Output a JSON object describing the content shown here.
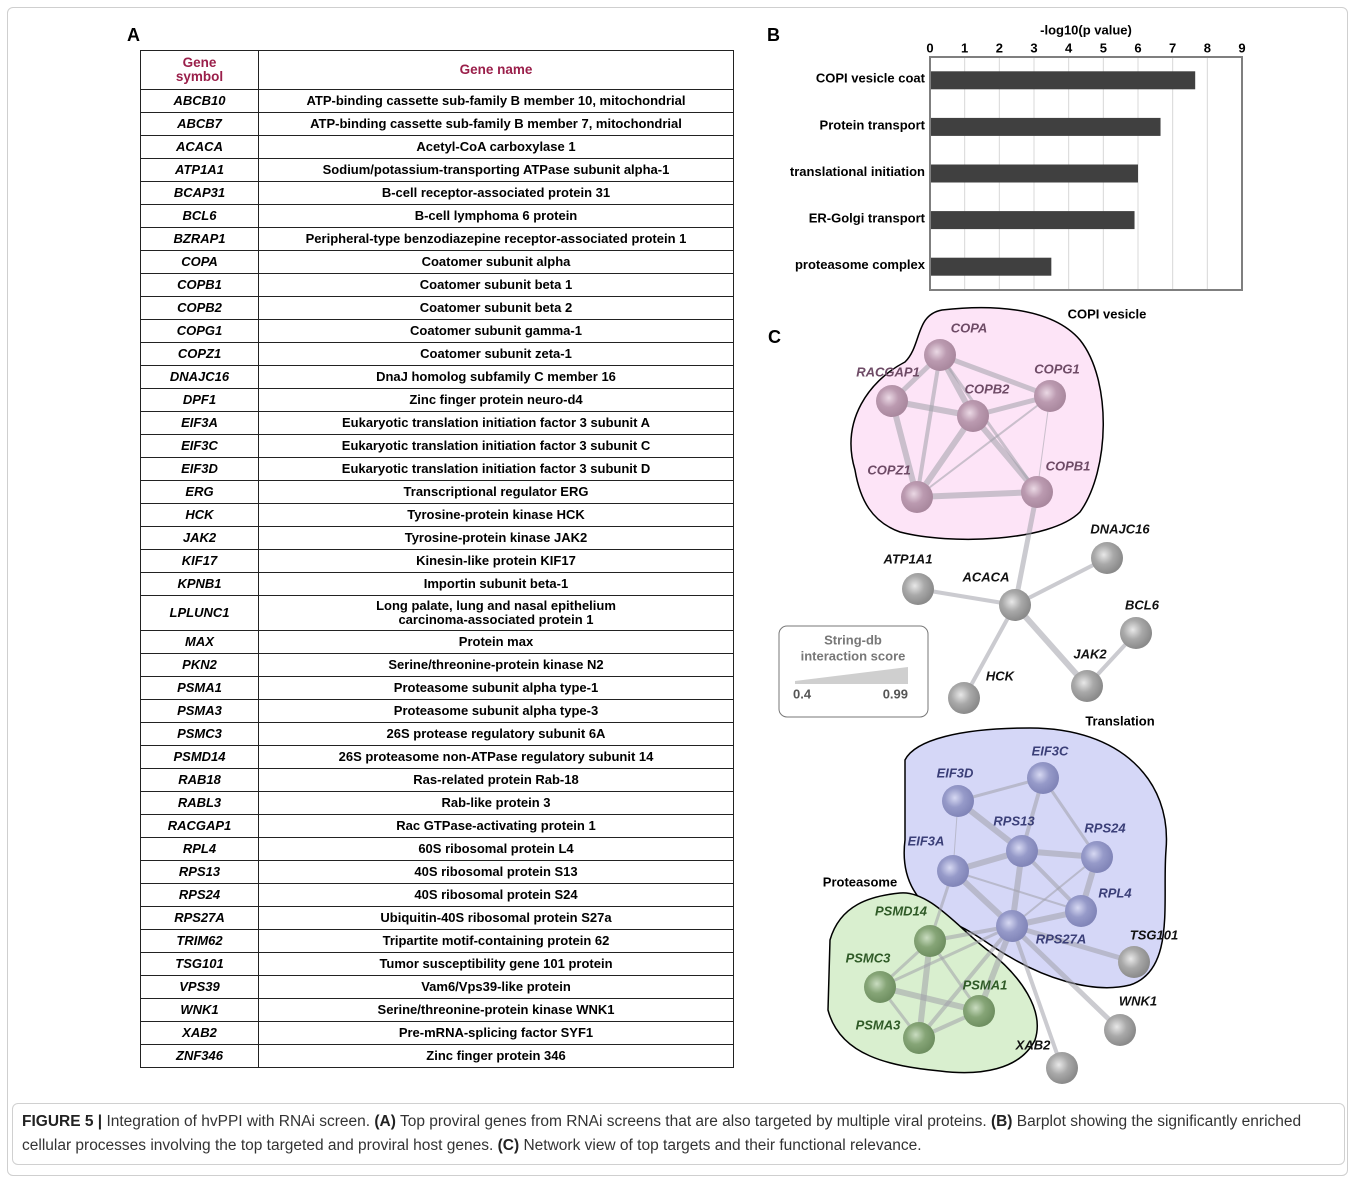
{
  "panel_a": {
    "label": "A",
    "table": {
      "header": [
        "Gene\nsymbol",
        "Gene name"
      ],
      "rows": [
        [
          "ABCB10",
          "ATP-binding cassette sub-family B member 10, mitochondrial"
        ],
        [
          "ABCB7",
          "ATP-binding cassette sub-family B member 7, mitochondrial"
        ],
        [
          "ACACA",
          "Acetyl-CoA carboxylase 1"
        ],
        [
          "ATP1A1",
          "Sodium/potassium-transporting ATPase subunit alpha-1"
        ],
        [
          "BCAP31",
          "B-cell receptor-associated protein 31"
        ],
        [
          "BCL6",
          "B-cell lymphoma 6 protein"
        ],
        [
          "BZRAP1",
          "Peripheral-type benzodiazepine receptor-associated protein 1"
        ],
        [
          "COPA",
          "Coatomer subunit alpha"
        ],
        [
          "COPB1",
          "Coatomer subunit beta 1"
        ],
        [
          "COPB2",
          "Coatomer subunit beta 2"
        ],
        [
          "COPG1",
          "Coatomer subunit gamma-1"
        ],
        [
          "COPZ1",
          "Coatomer subunit zeta-1"
        ],
        [
          "DNAJC16",
          "DnaJ homolog subfamily C member 16"
        ],
        [
          "DPF1",
          "Zinc finger protein neuro-d4"
        ],
        [
          "EIF3A",
          "Eukaryotic translation initiation factor 3 subunit A"
        ],
        [
          "EIF3C",
          "Eukaryotic translation initiation factor 3 subunit C"
        ],
        [
          "EIF3D",
          "Eukaryotic translation initiation factor 3 subunit D"
        ],
        [
          "ERG",
          "Transcriptional regulator ERG"
        ],
        [
          "HCK",
          "Tyrosine-protein kinase HCK"
        ],
        [
          "JAK2",
          "Tyrosine-protein kinase JAK2"
        ],
        [
          "KIF17",
          "Kinesin-like protein KIF17"
        ],
        [
          "KPNB1",
          "Importin subunit beta-1"
        ],
        [
          "LPLUNC1",
          "Long palate, lung and nasal epithelium\ncarcinoma-associated protein 1"
        ],
        [
          "MAX",
          "Protein max"
        ],
        [
          "PKN2",
          "Serine/threonine-protein kinase N2"
        ],
        [
          "PSMA1",
          "Proteasome subunit alpha type-1"
        ],
        [
          "PSMA3",
          "Proteasome subunit alpha type-3"
        ],
        [
          "PSMC3",
          "26S protease regulatory subunit 6A"
        ],
        [
          "PSMD14",
          "26S proteasome non-ATPase regulatory subunit 14"
        ],
        [
          "RAB18",
          "Ras-related protein Rab-18"
        ],
        [
          "RABL3",
          "Rab-like protein 3"
        ],
        [
          "RACGAP1",
          "Rac GTPase-activating protein 1"
        ],
        [
          "RPL4",
          "60S ribosomal protein L4"
        ],
        [
          "RPS13",
          "40S ribosomal protein S13"
        ],
        [
          "RPS24",
          "40S ribosomal protein S24"
        ],
        [
          "RPS27A",
          "Ubiquitin-40S ribosomal protein S27a"
        ],
        [
          "TRIM62",
          "Tripartite motif-containing protein 62"
        ],
        [
          "TSG101",
          "Tumor susceptibility gene 101 protein"
        ],
        [
          "VPS39",
          "Vam6/Vps39-like protein"
        ],
        [
          "WNK1",
          "Serine/threonine-protein kinase WNK1"
        ],
        [
          "XAB2",
          "Pre-mRNA-splicing factor SYF1"
        ],
        [
          "ZNF346",
          "Zinc finger protein 346"
        ]
      ]
    }
  },
  "chart_data": {
    "type": "bar",
    "orientation": "horizontal",
    "label": "B",
    "xlabel": "-log10(p value)",
    "categories": [
      "COPI vesicle coat",
      "Protein transport",
      "translational initiation",
      "ER-Golgi transport",
      "proteasome complex"
    ],
    "values": [
      7.65,
      6.65,
      6.0,
      5.9,
      3.5
    ],
    "color": "#404040",
    "xlim": [
      0,
      9
    ],
    "xticks": [
      0,
      1,
      2,
      3,
      4,
      5,
      6,
      7,
      8,
      9
    ],
    "grid": true
  },
  "panel_c": {
    "label": "C",
    "groups": [
      "COPI vesicle",
      "Translation",
      "Proteasome"
    ],
    "nodes": [
      "COPA",
      "COPG1",
      "COPB2",
      "RACGAP1",
      "COPZ1",
      "COPB1",
      "DNAJC16",
      "ATP1A1",
      "ACACA",
      "BCL6",
      "JAK2",
      "HCK",
      "EIF3C",
      "EIF3D",
      "RPS13",
      "RPS24",
      "EIF3A",
      "RPL4",
      "RPS27A",
      "PSMD14",
      "PSMC3",
      "PSMA1",
      "PSMA3",
      "TSG101",
      "WNK1",
      "XAB2"
    ],
    "legend": {
      "title": "String-db\ninteraction score",
      "min": "0.4",
      "max": "0.99"
    }
  },
  "caption": {
    "label": "FIGURE 5 |",
    "intro": "Integration of hvPPI with RNAi screen.",
    "a_tag": "(A)",
    "a_text": "Top proviral genes from RNAi screens that are also targeted by multiple viral proteins.",
    "b_tag": "(B)",
    "b_text": "Barplot showing the significantly enriched cellular processes involving the top targeted and proviral host genes.",
    "c_tag": "(C)",
    "c_text": "Network view of top targets and their functional relevance."
  }
}
